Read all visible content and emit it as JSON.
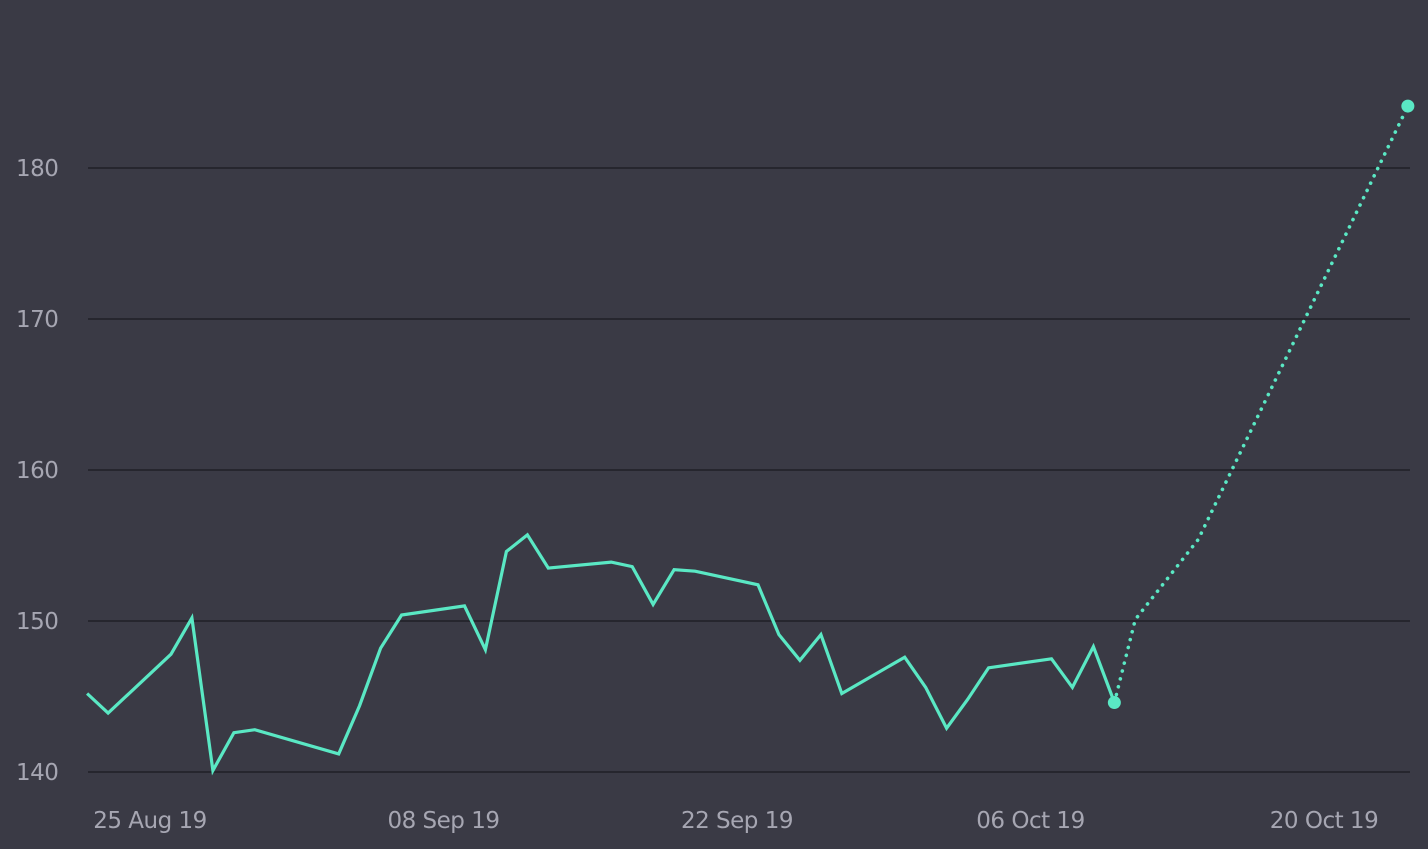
{
  "chart_data": {
    "type": "line",
    "title": "",
    "xlabel": "",
    "ylabel": "",
    "x_range": [
      "2019-08-22",
      "2019-10-22"
    ],
    "ylim": [
      140,
      184
    ],
    "y_ticks": [
      140,
      150,
      160,
      170,
      180
    ],
    "x_ticks": [
      {
        "date": "2019-08-25",
        "label": "25 Aug 19"
      },
      {
        "date": "2019-09-08",
        "label": "08 Sep 19"
      },
      {
        "date": "2019-09-22",
        "label": "22 Sep 19"
      },
      {
        "date": "2019-10-06",
        "label": "06 Oct 19"
      },
      {
        "date": "2019-10-20",
        "label": "20 Oct 19"
      }
    ],
    "grid": true,
    "series": [
      {
        "kind": "actual",
        "color": "#5ae8c4",
        "x": [
          "2019-08-22",
          "2019-08-23",
          "2019-08-26",
          "2019-08-27",
          "2019-08-28",
          "2019-08-29",
          "2019-08-30",
          "2019-09-03",
          "2019-09-04",
          "2019-09-05",
          "2019-09-06",
          "2019-09-09",
          "2019-09-10",
          "2019-09-11",
          "2019-09-12",
          "2019-09-13",
          "2019-09-16",
          "2019-09-17",
          "2019-09-18",
          "2019-09-19",
          "2019-09-20",
          "2019-09-23",
          "2019-09-24",
          "2019-09-25",
          "2019-09-26",
          "2019-09-27",
          "2019-09-30",
          "2019-10-01",
          "2019-10-02",
          "2019-10-03",
          "2019-10-04",
          "2019-10-07",
          "2019-10-08",
          "2019-10-09",
          "2019-10-10"
        ],
        "y": [
          145.2,
          143.9,
          147.8,
          150.2,
          140.1,
          142.6,
          142.8,
          141.2,
          144.4,
          148.2,
          150.4,
          151.0,
          148.1,
          154.6,
          155.7,
          153.5,
          153.9,
          153.6,
          151.1,
          153.4,
          153.3,
          152.4,
          149.1,
          147.4,
          149.1,
          145.2,
          147.6,
          145.6,
          142.9,
          144.8,
          146.9,
          147.5,
          145.6,
          148.3,
          144.6
        ]
      },
      {
        "kind": "forecast",
        "color": "#5ae8c4",
        "x": [
          "2019-10-10",
          "2019-10-11",
          "2019-10-14",
          "2019-10-24"
        ],
        "y": [
          144.6,
          150.1,
          155.4,
          184.1
        ]
      }
    ]
  }
}
